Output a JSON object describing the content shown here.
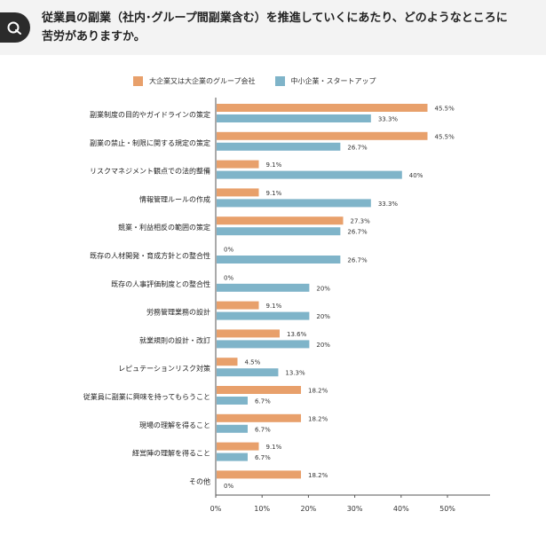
{
  "question": {
    "line1": "従業員の副業（社内･グループ間副業含む）を推進していくにあたり、どのようなところに",
    "line2": "苦労がありますか。"
  },
  "colors": {
    "large": "#e8a06b",
    "small": "#7fb4c9",
    "header_bg": "#f3f3f3",
    "badge": "#2b2b2b"
  },
  "chart_data": {
    "type": "bar",
    "orientation": "horizontal",
    "xlim": [
      0,
      50
    ],
    "xticks": [
      "0%",
      "10%",
      "20%",
      "30%",
      "40%",
      "50%"
    ],
    "grid": false,
    "legend_position": "top",
    "categories": [
      "副業制度の目的やガイドラインの策定",
      "副業の禁止・制限に関する規定の策定",
      "リスクマネジメント観点での法的整備",
      "情報管理ルールの作成",
      "競業・利益相反の範囲の策定",
      "既存の人材開発・育成方針との整合性",
      "既存の人事評価制度との整合性",
      "労務管理業務の設計",
      "就業規則の設計・改訂",
      "レピュテーションリスク対策",
      "従業員に副業に興味を持ってもらうこと",
      "現場の理解を得ること",
      "経営陣の理解を得ること",
      "その他"
    ],
    "series": [
      {
        "name": "大企業又は大企業のグループ会社",
        "values": [
          45.5,
          45.5,
          9.1,
          9.1,
          27.3,
          0,
          0,
          9.1,
          13.6,
          4.5,
          18.2,
          18.2,
          9.1,
          18.2
        ],
        "labels": [
          "45.5%",
          "45.5%",
          "9.1%",
          "9.1%",
          "27.3%",
          "0%",
          "0%",
          "9.1%",
          "13.6%",
          "4.5%",
          "18.2%",
          "18.2%",
          "9.1%",
          "18.2%"
        ]
      },
      {
        "name": "中小企業・スタートアップ",
        "values": [
          33.3,
          26.7,
          40,
          33.3,
          26.7,
          26.7,
          20,
          20,
          20,
          13.3,
          6.7,
          6.7,
          6.7,
          0
        ],
        "labels": [
          "33.3%",
          "26.7%",
          "40%",
          "33.3%",
          "26.7%",
          "26.7%",
          "20%",
          "20%",
          "20%",
          "13.3%",
          "6.7%",
          "6.7%",
          "6.7%",
          "0%"
        ]
      }
    ]
  }
}
